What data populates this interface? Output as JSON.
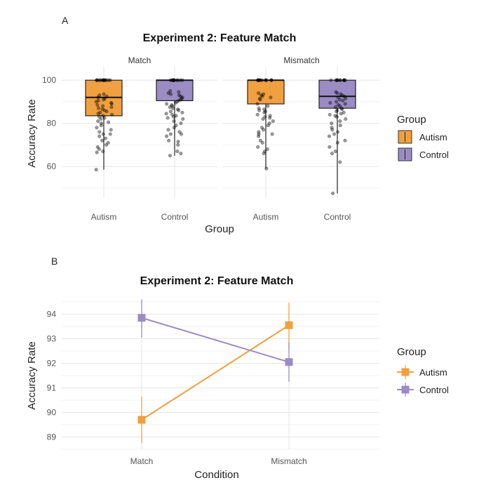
{
  "colors": {
    "Autism": "#F0A040",
    "Control": "#9B8CC4"
  },
  "chart_data": [
    {
      "panel": "A",
      "type": "box",
      "title": "Experiment 2: Feature Match",
      "xlabel": "Group",
      "ylabel": "Accuracy Rate",
      "ylim": [
        47,
        103
      ],
      "yticks": [
        60,
        80,
        100
      ],
      "facets": [
        "Match",
        "Mismatch"
      ],
      "categories": [
        "Autism",
        "Control"
      ],
      "legend": {
        "title": "Group",
        "entries": [
          "Autism",
          "Control"
        ],
        "position": "right"
      },
      "grid": true,
      "boxes": [
        {
          "facet": "Match",
          "group": "Autism",
          "min": 58.5,
          "q1": 83.5,
          "median": 92.0,
          "q3": 100,
          "max": 100
        },
        {
          "facet": "Match",
          "group": "Control",
          "min": 65,
          "q1": 90.5,
          "median": 100,
          "q3": 100,
          "max": 100
        },
        {
          "facet": "Mismatch",
          "group": "Autism",
          "min": 59,
          "q1": 89.0,
          "median": 100,
          "q3": 100,
          "max": 100
        },
        {
          "facet": "Mismatch",
          "group": "Control",
          "min": 47.5,
          "q1": 87.0,
          "median": 92.5,
          "q3": 100,
          "max": 100
        }
      ],
      "points": [
        {
          "facet": "Match",
          "group": "Autism",
          "values": [
            100,
            100,
            100,
            100,
            100,
            100,
            100,
            100,
            100,
            100,
            100,
            100,
            100,
            100,
            93.5,
            93,
            92.5,
            92,
            91.5,
            91,
            90.5,
            90,
            89.5,
            89,
            88.5,
            88,
            87.5,
            87,
            86.5,
            86,
            85.5,
            85,
            84.5,
            84,
            83.5,
            83,
            82.5,
            82,
            81,
            80.5,
            80,
            79,
            78,
            77,
            76,
            75,
            75,
            74,
            73,
            72,
            71,
            70,
            69,
            68,
            67,
            66.5,
            58.5
          ]
        },
        {
          "facet": "Match",
          "group": "Control",
          "values": [
            100,
            100,
            100,
            100,
            100,
            100,
            100,
            100,
            100,
            100,
            100,
            100,
            95,
            94.5,
            94,
            93.5,
            93,
            92.5,
            92,
            91.5,
            91,
            90.5,
            90,
            89.5,
            89,
            88.5,
            88,
            87.5,
            87,
            86.5,
            86,
            85.5,
            85,
            84.5,
            84,
            83.5,
            83,
            82.5,
            82,
            81,
            80,
            79,
            78,
            77,
            76,
            75,
            75,
            74,
            72,
            71.5,
            70,
            67,
            66,
            65
          ]
        },
        {
          "facet": "Mismatch",
          "group": "Autism",
          "values": [
            100,
            100,
            100,
            100,
            100,
            100,
            100,
            100,
            100,
            100,
            100,
            100,
            100,
            94,
            93.5,
            93,
            92.5,
            92,
            91.5,
            91,
            89,
            88,
            87,
            86.5,
            86,
            85.5,
            85,
            84,
            83.5,
            83,
            82.5,
            82,
            81,
            80,
            79,
            78,
            77,
            76,
            75,
            75,
            74,
            72,
            71,
            69,
            68,
            67,
            66,
            59
          ]
        },
        {
          "facet": "Mismatch",
          "group": "Control",
          "values": [
            100,
            100,
            100,
            100,
            100,
            100,
            100,
            100,
            100,
            100,
            100,
            100,
            94.5,
            94,
            93.5,
            93,
            92.5,
            92,
            91.5,
            91,
            90.5,
            90,
            89.5,
            89,
            88.5,
            88,
            87.5,
            87,
            86.5,
            86,
            85.5,
            85,
            84.5,
            84,
            83.5,
            83,
            82,
            81,
            80,
            79,
            78,
            77,
            76,
            75,
            74,
            72,
            71,
            69,
            67,
            66,
            62,
            47.5
          ]
        }
      ]
    },
    {
      "panel": "B",
      "type": "line",
      "title": "Experiment 2: Feature Match",
      "xlabel": "Condition",
      "ylabel": "Accuracy Rate",
      "ylim": [
        88.5,
        94.5
      ],
      "yticks": [
        89,
        90,
        91,
        92,
        93,
        94
      ],
      "categories": [
        "Match",
        "Mismatch"
      ],
      "legend": {
        "title": "Group",
        "entries": [
          "Autism",
          "Control"
        ],
        "position": "right"
      },
      "grid": true,
      "series": [
        {
          "name": "Autism",
          "values": [
            89.7,
            93.55
          ],
          "lower": [
            88.75,
            92.55
          ],
          "upper": [
            90.65,
            94.45
          ]
        },
        {
          "name": "Control",
          "values": [
            93.85,
            92.05
          ],
          "lower": [
            93.05,
            91.25
          ],
          "upper": [
            94.6,
            92.85
          ]
        }
      ]
    }
  ]
}
